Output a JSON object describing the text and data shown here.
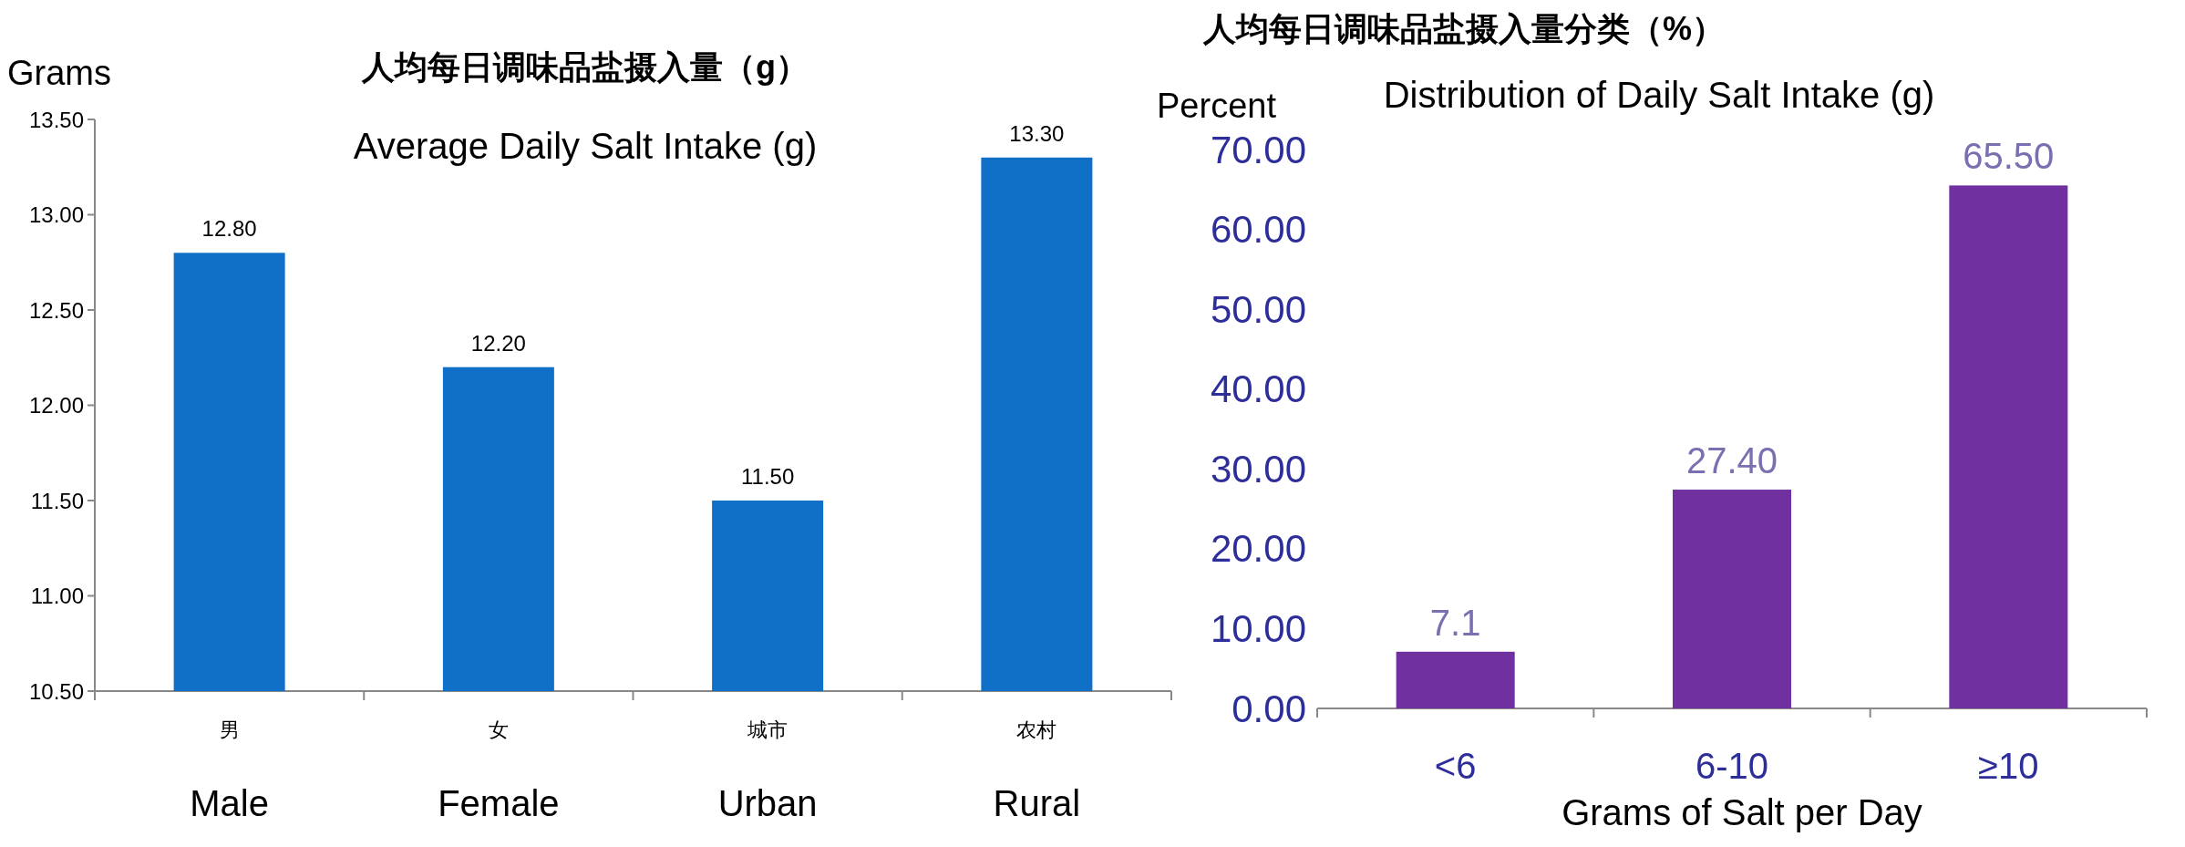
{
  "chart_data": [
    {
      "type": "bar",
      "title": "人均每日调味品盐摄入量（g）",
      "subtitle": "Average Daily Salt Intake (g)",
      "ylabel": "Grams",
      "categories": [
        "男",
        "女",
        "城市",
        "农村"
      ],
      "values": [
        12.8,
        12.2,
        11.5,
        13.3
      ],
      "color": "#1070c8",
      "value_labels": [
        "12.80",
        "12.20",
        "11.50",
        "13.30"
      ],
      "ylim": [
        10.5,
        13.5
      ],
      "yticks": [
        {
          "value": 10.5,
          "label": "10.50"
        },
        {
          "value": 11,
          "label": "11.00"
        },
        {
          "value": 11.5,
          "label": "11.50"
        },
        {
          "value": 12,
          "label": "12.00"
        },
        {
          "value": 12.5,
          "label": "12.50"
        },
        {
          "value": 13,
          "label": "13.00"
        },
        {
          "value": 13.5,
          "label": "13.50"
        }
      ],
      "annotations": [
        "Male",
        "Female",
        "Urban",
        "Rural"
      ]
    },
    {
      "type": "bar",
      "title": "人均每日调味品盐摄入量分类（%）",
      "subtitle": "Distribution of Daily Salt Intake (g)",
      "ylabel": "Percent",
      "xlabel": "Grams of Salt per Day",
      "categories": [
        "<6",
        "6-10",
        "≥10"
      ],
      "values": [
        7.1,
        27.4,
        65.5
      ],
      "color": "#7030a0",
      "value_labels": [
        "7.1",
        "27.40",
        "65.50"
      ],
      "ylim": [
        0,
        70
      ],
      "yticks": [
        {
          "value": 0,
          "label": "0.00"
        },
        {
          "value": 10,
          "label": "10.00"
        },
        {
          "value": 20,
          "label": "20.00"
        },
        {
          "value": 30,
          "label": "30.00"
        },
        {
          "value": 40,
          "label": "40.00"
        },
        {
          "value": 50,
          "label": "50.00"
        },
        {
          "value": 60,
          "label": "60.00"
        },
        {
          "value": 70,
          "label": "70.00"
        }
      ]
    }
  ]
}
